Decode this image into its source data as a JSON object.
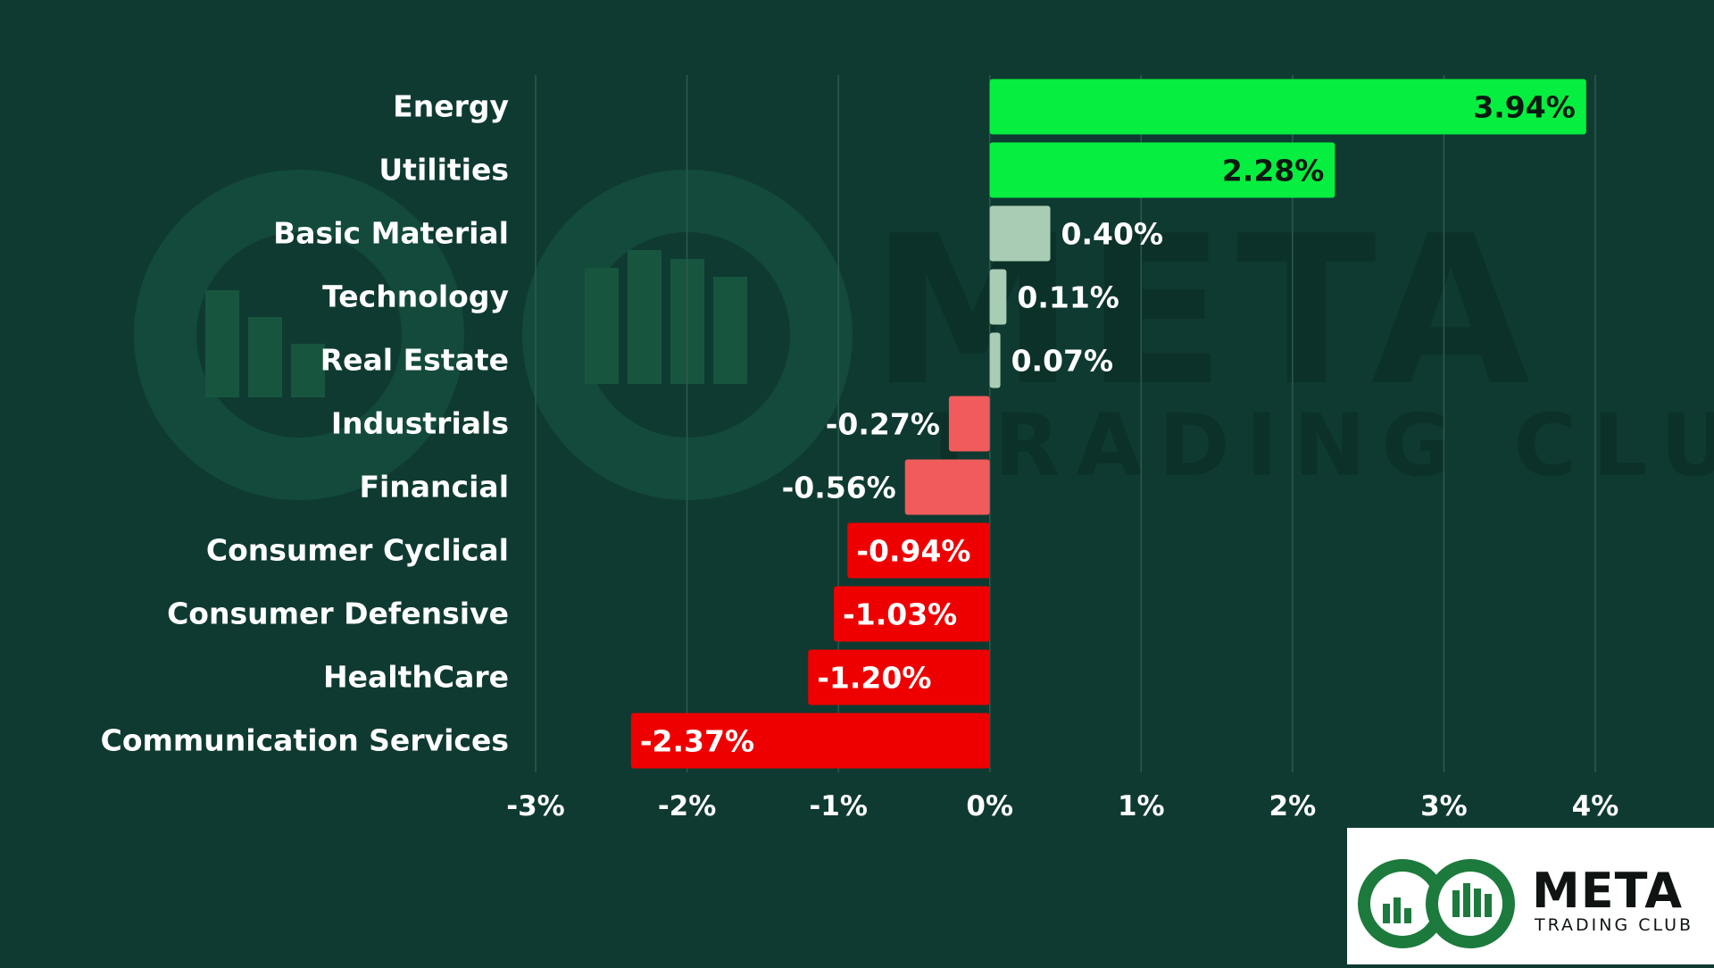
{
  "chart_data": {
    "type": "bar",
    "orientation": "horizontal",
    "categories": [
      "Energy",
      "Utilities",
      "Basic Material",
      "Technology",
      "Real Estate",
      "Industrials",
      "Financial",
      "Consumer Cyclical",
      "Consumer Defensive",
      "HealthCare",
      "Communication Services"
    ],
    "values": [
      3.94,
      2.28,
      0.4,
      0.11,
      0.07,
      -0.27,
      -0.56,
      -0.94,
      -1.03,
      -1.2,
      -2.37
    ],
    "value_labels": [
      "3.94%",
      "2.28%",
      "0.40%",
      "0.11%",
      "0.07%",
      "-0.27%",
      "-0.56%",
      "-0.94%",
      "-1.03%",
      "-1.20%",
      "-2.37%"
    ],
    "bar_colors": [
      "#06ee3f",
      "#06ee3f",
      "#a9cdb4",
      "#a9cdb4",
      "#a9cdb4",
      "#f25b5b",
      "#f25b5b",
      "#ee0000",
      "#ee0000",
      "#ee0000",
      "#ee0000"
    ],
    "label_colors": [
      "#0a1a12",
      "#0a1a12",
      "#ffffff",
      "#ffffff",
      "#ffffff",
      "#ffffff",
      "#ffffff",
      "#ffffff",
      "#ffffff",
      "#ffffff",
      "#ffffff"
    ],
    "xlim": [
      -3,
      4
    ],
    "xticks": [
      -3,
      -2,
      -1,
      0,
      1,
      2,
      3,
      4
    ],
    "xtick_labels": [
      "-3%",
      "-2%",
      "-1%",
      "0%",
      "1%",
      "2%",
      "3%",
      "4%"
    ],
    "grid": true,
    "title": "",
    "xlabel": "",
    "ylabel": ""
  },
  "watermark": {
    "brand": "META",
    "tagline": "TRADING CLUB"
  },
  "logo": {
    "brand": "META",
    "tagline": "TRADING CLUB"
  },
  "colors": {
    "background": "#0f3a31",
    "text": "#ffffff",
    "grid": "#2d5a4f",
    "logo_green": "#1c7a3d"
  }
}
